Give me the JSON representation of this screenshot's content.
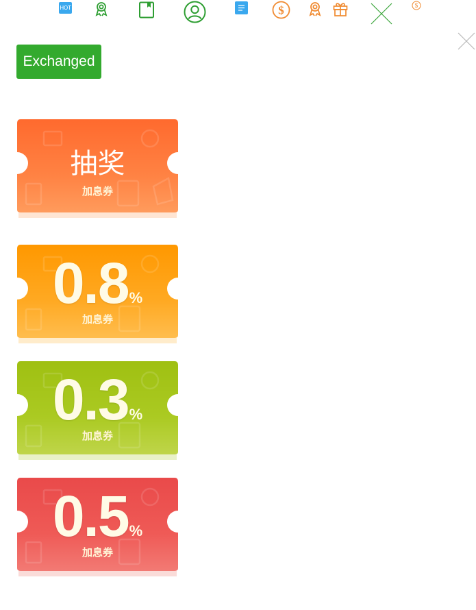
{
  "toolbar": {
    "hot_label": "HOT",
    "icons": [
      "hot-icon",
      "award-icon",
      "book-icon",
      "user-icon",
      "document-icon",
      "dollar-icon",
      "award-icon",
      "gift-icon",
      "close-icon",
      "dollar-icon"
    ]
  },
  "exchanged_label": "Exchanged",
  "colors": {
    "green": "#33aa2e",
    "blue": "#3aa8ee",
    "orange_icon": "#f08a30",
    "coupon_lottery": "#ff7a36",
    "coupon_08": "#ffa11c",
    "coupon_03": "#a6c61a",
    "coupon_05": "#ee5552"
  },
  "coupons": [
    {
      "title": "抽奖",
      "sublabel": "加息券"
    },
    {
      "value": "0.8",
      "unit": "%",
      "sublabel": "加息券"
    },
    {
      "value": "0.3",
      "unit": "%",
      "sublabel": "加息券"
    },
    {
      "value": "0.5",
      "unit": "%",
      "sublabel": "加息券"
    }
  ]
}
